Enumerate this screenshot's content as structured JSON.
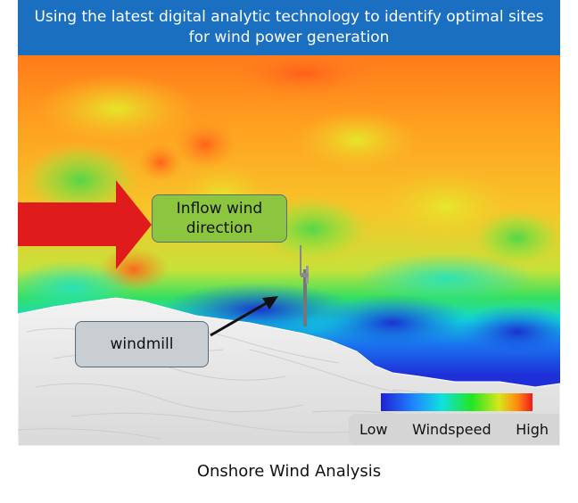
{
  "header": {
    "title": "Using the latest digital analytic technology to identify optimal sites for wind power generation"
  },
  "callouts": {
    "inflow": "Inflow wind direction",
    "windmill": "windmill"
  },
  "legend": {
    "low": "Low",
    "title": "Windspeed",
    "high": "High",
    "colors": [
      "#1f1fd6",
      "#1e88ff",
      "#10e0e0",
      "#22e622",
      "#d8e61a",
      "#ff8a10",
      "#ee1a1a"
    ]
  },
  "caption": "Onshore Wind Analysis",
  "colors": {
    "banner": "#1a6fc0",
    "inflow_arrow": "#e01b1b",
    "callout_inflow": "#8cc63f",
    "callout_windmill": "#c9ced3",
    "terrain": "#e9e9e9"
  }
}
